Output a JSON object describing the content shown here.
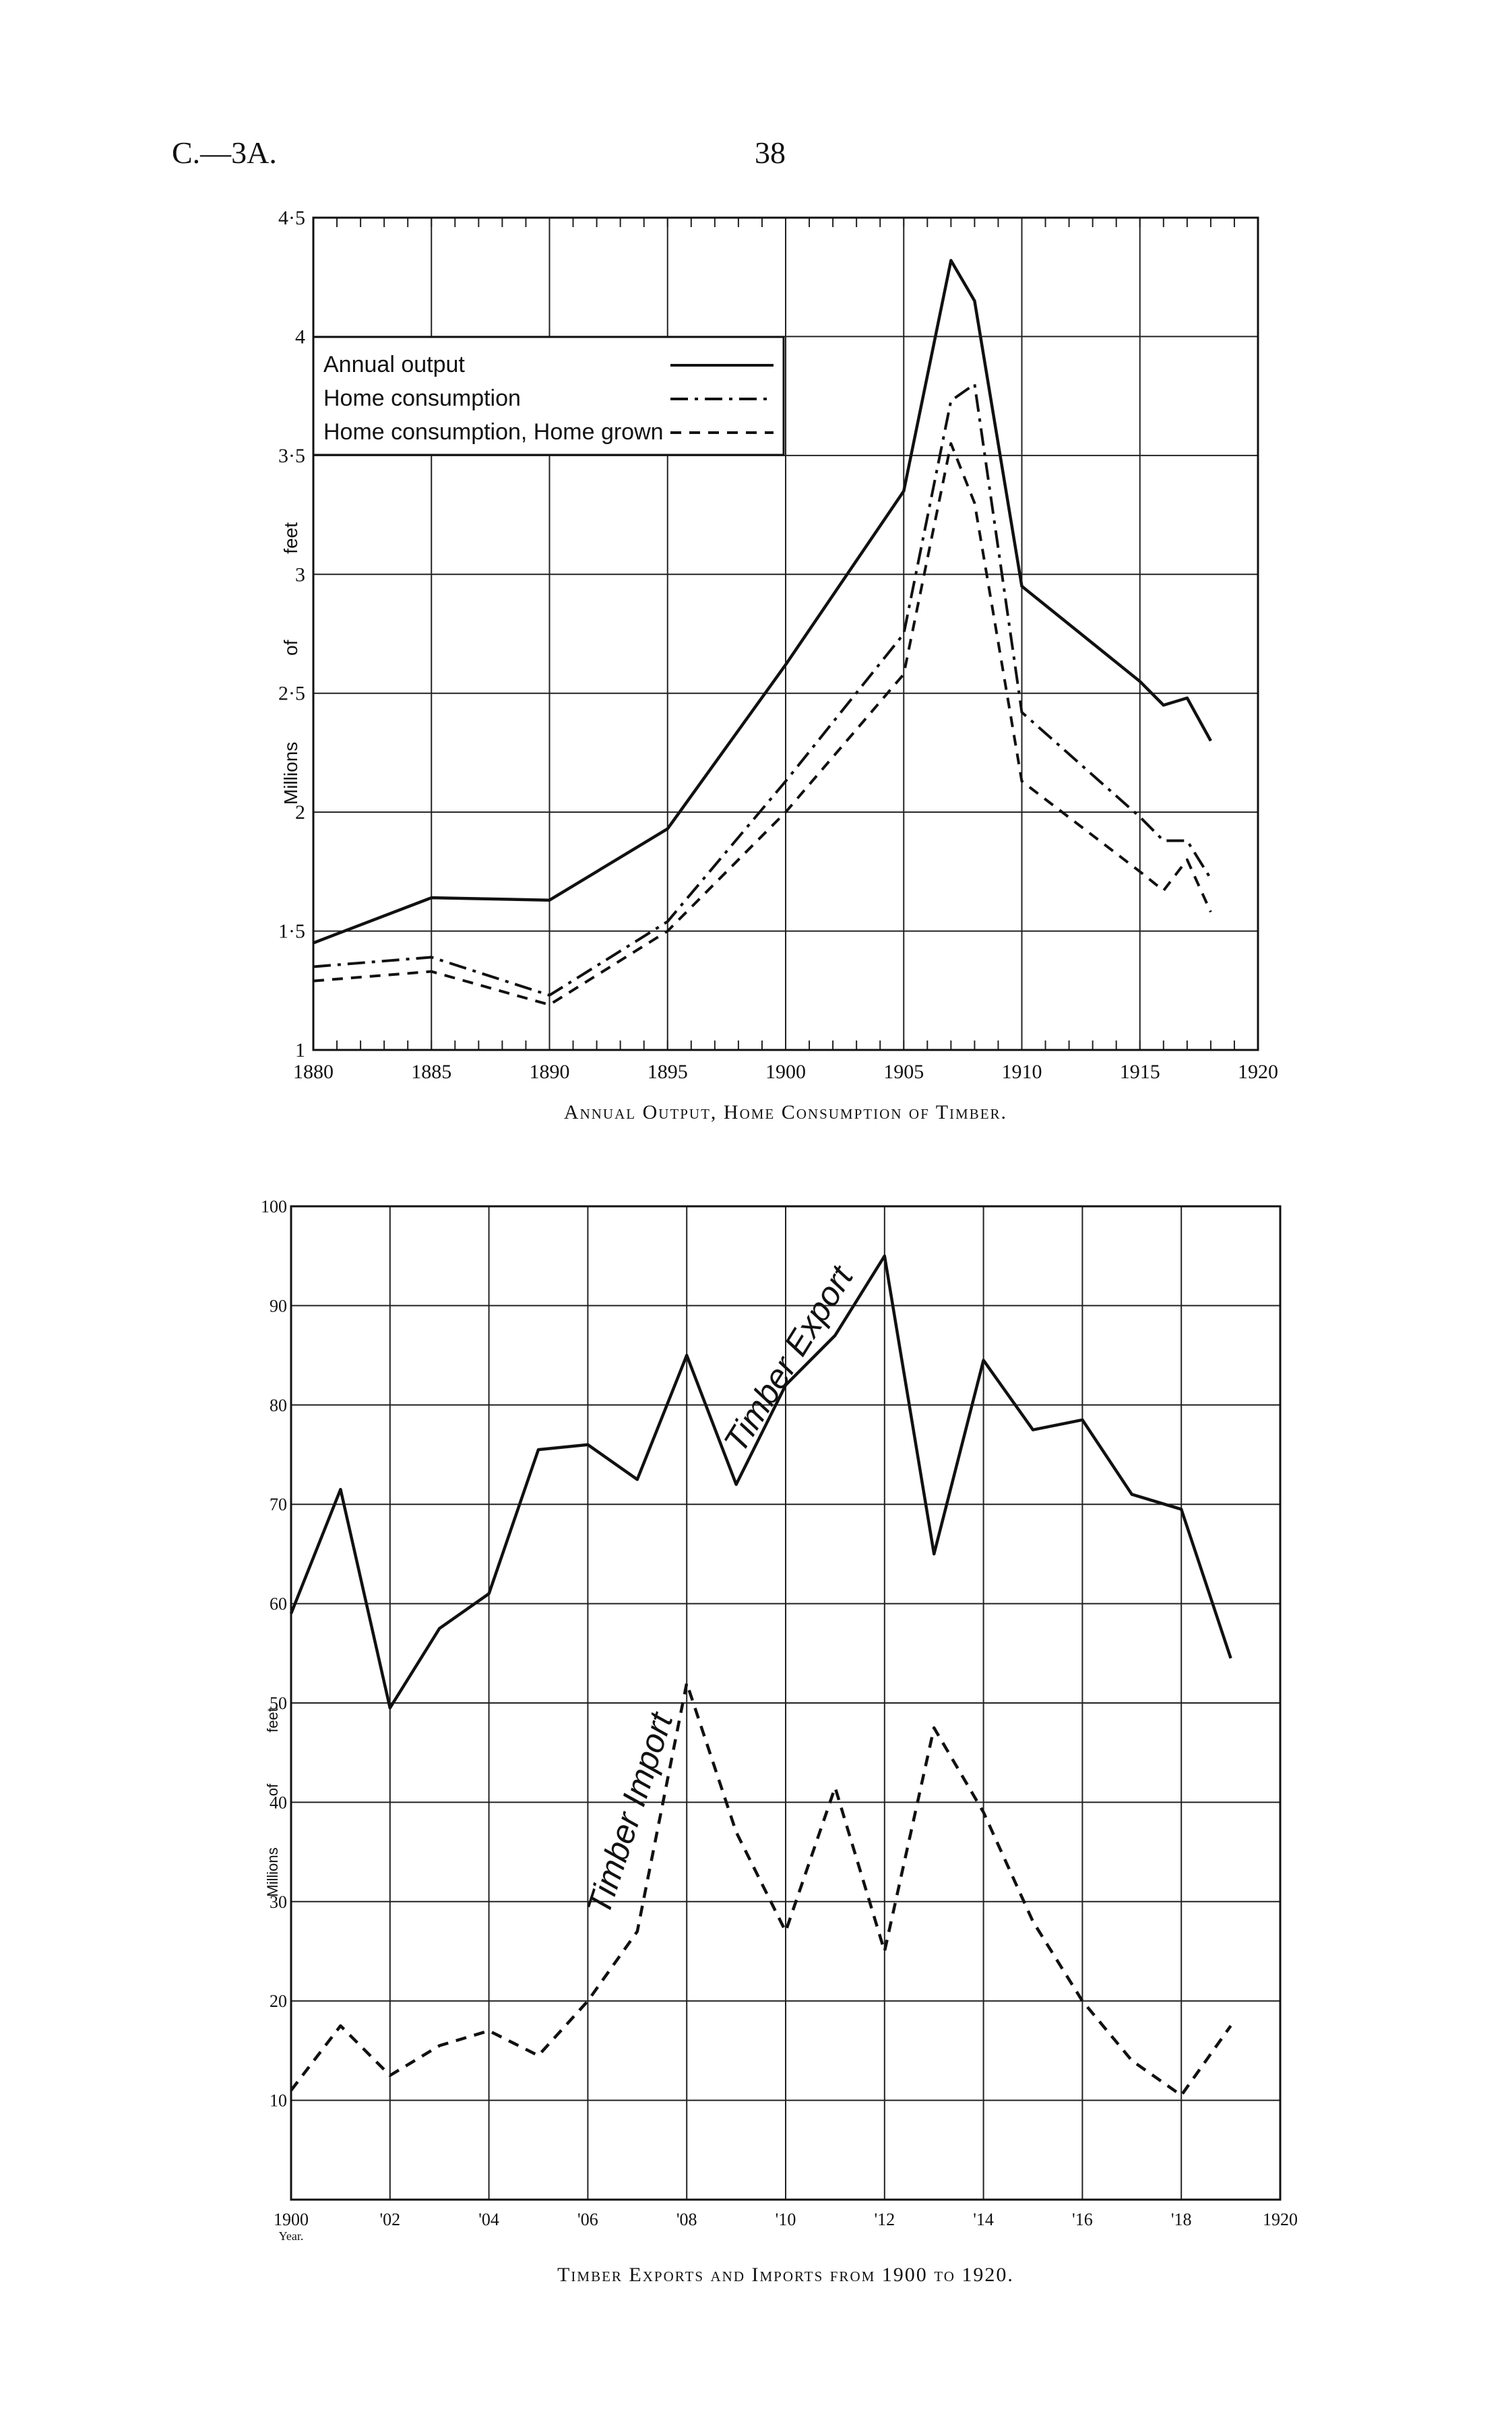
{
  "header": {
    "left": "C.—3A.",
    "center": "38"
  },
  "chart_data": [
    {
      "type": "line",
      "title": "Annual Output, Home Consumption of Timber.",
      "ylabel": "Millions of feet",
      "xlim": [
        1880,
        1920
      ],
      "ylim": [
        1,
        4.5
      ],
      "xticks": [
        1880,
        1885,
        1890,
        1895,
        1900,
        1905,
        1910,
        1915,
        1920
      ],
      "ytick_labels": [
        {
          "value": 1,
          "label": "1"
        },
        {
          "value": 1.5,
          "label": "1·5"
        },
        {
          "value": 2,
          "label": "2"
        },
        {
          "value": 2.5,
          "label": "2·5"
        },
        {
          "value": 3,
          "label": "3"
        },
        {
          "value": 3.5,
          "label": "3·5"
        },
        {
          "value": 4,
          "label": "4"
        },
        {
          "value": 4.5,
          "label": "4·5"
        }
      ],
      "grid": true,
      "legend_position": "top-left",
      "series": [
        {
          "name": "Annual output",
          "style": "solid",
          "x": [
            1880,
            1885,
            1890,
            1895,
            1900,
            1905,
            1907,
            1908,
            1910,
            1915,
            1916,
            1917,
            1918
          ],
          "y": [
            1.45,
            1.64,
            1.63,
            1.93,
            2.62,
            3.35,
            4.32,
            4.15,
            2.95,
            2.55,
            2.45,
            2.48,
            2.3
          ]
        },
        {
          "name": "Home consumption",
          "style": "dashdot",
          "x": [
            1880,
            1885,
            1890,
            1895,
            1900,
            1905,
            1907,
            1908,
            1910,
            1915,
            1916,
            1917,
            1918
          ],
          "y": [
            1.35,
            1.39,
            1.23,
            1.54,
            2.13,
            2.75,
            3.73,
            3.8,
            2.42,
            1.98,
            1.88,
            1.88,
            1.72
          ]
        },
        {
          "name": "Home consumption, Home grown",
          "style": "dashed",
          "x": [
            1880,
            1885,
            1890,
            1895,
            1900,
            1905,
            1907,
            1908,
            1910,
            1915,
            1916,
            1917,
            1918
          ],
          "y": [
            1.29,
            1.33,
            1.19,
            1.5,
            2.0,
            2.58,
            3.55,
            3.3,
            2.13,
            1.75,
            1.67,
            1.8,
            1.58
          ]
        }
      ]
    },
    {
      "type": "line",
      "title": "Timber Exports and Imports from 1900 to 1920.",
      "ylabel": "Millions of feet",
      "x_unit_label": "Year.",
      "xlim": [
        1900,
        1920
      ],
      "ylim": [
        0,
        100
      ],
      "xtick_labels": [
        {
          "value": 1900,
          "label": "1900"
        },
        {
          "value": 1902,
          "label": "'02"
        },
        {
          "value": 1904,
          "label": "'04"
        },
        {
          "value": 1906,
          "label": "'06"
        },
        {
          "value": 1908,
          "label": "'08"
        },
        {
          "value": 1910,
          "label": "'10"
        },
        {
          "value": 1912,
          "label": "'12"
        },
        {
          "value": 1914,
          "label": "'14"
        },
        {
          "value": 1916,
          "label": "'16"
        },
        {
          "value": 1918,
          "label": "'18"
        },
        {
          "value": 1920,
          "label": "1920"
        }
      ],
      "yticks": [
        10,
        20,
        30,
        40,
        50,
        60,
        70,
        80,
        90,
        100
      ],
      "grid": true,
      "series": [
        {
          "name": "Timber Export",
          "style": "solid",
          "x": [
            1900,
            1901,
            1902,
            1903,
            1904,
            1905,
            1906,
            1907,
            1908,
            1909,
            1910,
            1911,
            1912,
            1913,
            1914,
            1915,
            1916,
            1917,
            1918,
            1919
          ],
          "y": [
            59,
            71.5,
            49.5,
            57.5,
            61,
            75.5,
            76,
            72.5,
            85,
            72,
            82,
            87,
            95,
            65,
            84.5,
            77.5,
            78.5,
            71,
            69.5,
            54.5
          ]
        },
        {
          "name": "Timber Import",
          "style": "dashed",
          "x": [
            1900,
            1901,
            1902,
            1903,
            1904,
            1905,
            1906,
            1907,
            1908,
            1909,
            1910,
            1911,
            1912,
            1913,
            1914,
            1915,
            1916,
            1917,
            1918,
            1919
          ],
          "y": [
            11,
            17.5,
            12.5,
            15.5,
            17,
            14.5,
            20,
            27,
            52,
            37,
            27,
            41.5,
            25,
            47.5,
            39,
            28,
            20,
            14,
            10.5,
            17.5
          ]
        }
      ]
    }
  ]
}
